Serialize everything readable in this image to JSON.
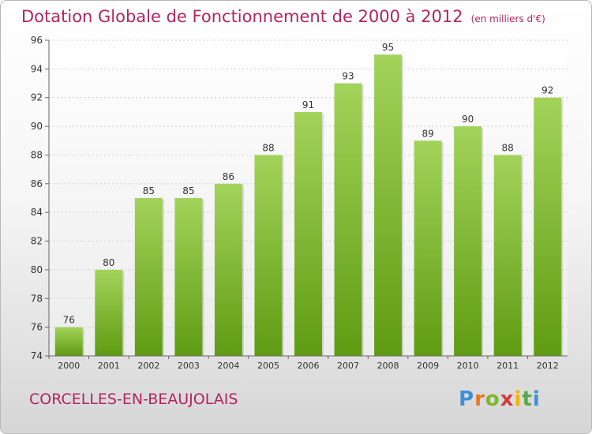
{
  "title": "Dotation Globale de Fonctionnement de 2000 à 2012",
  "unit": "(en milliers d'€)",
  "commune": "CORCELLES-EN-BEAUJOLAIS",
  "logo": "Proxiti",
  "colors": {
    "bar_top": "#a3d35a",
    "bar_bottom": "#5f9c12",
    "title": "#b3245f"
  },
  "chart_data": {
    "type": "bar",
    "title": "Dotation Globale de Fonctionnement de 2000 à 2012",
    "categories": [
      "2000",
      "2001",
      "2002",
      "2003",
      "2004",
      "2005",
      "2006",
      "2007",
      "2008",
      "2009",
      "2010",
      "2011",
      "2012"
    ],
    "values": [
      76,
      80,
      85,
      85,
      86,
      88,
      91,
      93,
      95,
      89,
      90,
      88,
      92
    ],
    "ylim": [
      74,
      96
    ],
    "yticks": [
      74,
      76,
      78,
      80,
      82,
      84,
      86,
      88,
      90,
      92,
      94,
      96
    ],
    "grid": true,
    "data_labels": true
  }
}
